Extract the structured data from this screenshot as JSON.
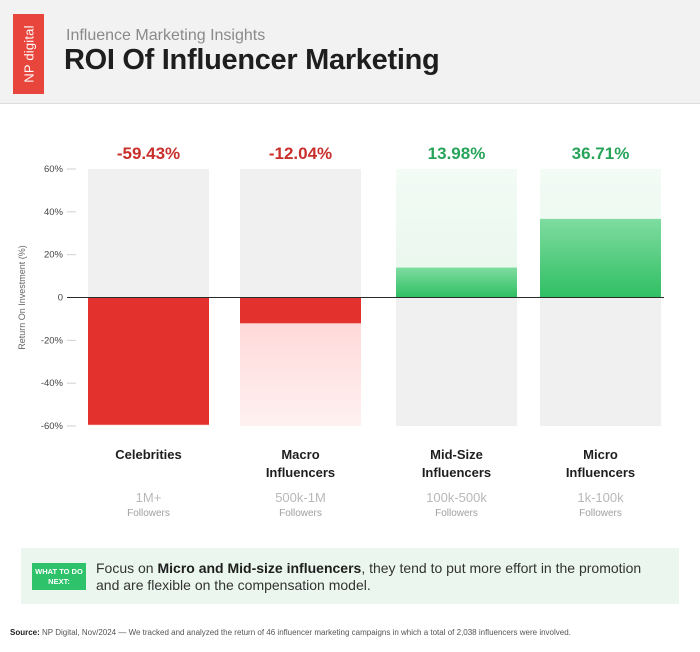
{
  "header": {
    "logo_text": "NP digital",
    "kicker": "Influence Marketing Insights",
    "title": "ROI Of Influencer Marketing"
  },
  "chart_data": {
    "type": "bar",
    "categories": [
      {
        "line1": "Celebrities",
        "line2": "",
        "tier": "1M+",
        "unit": "Followers"
      },
      {
        "line1": "Macro",
        "line2": "Influencers",
        "tier": "500k-1M",
        "unit": "Followers"
      },
      {
        "line1": "Mid-Size",
        "line2": "Influencers",
        "tier": "100k-500k",
        "unit": "Followers"
      },
      {
        "line1": "Micro",
        "line2": "Influencers",
        "tier": "1k-100k",
        "unit": "Followers"
      }
    ],
    "values": [
      -59.43,
      -12.04,
      13.98,
      36.71
    ],
    "value_labels": [
      "-59.43%",
      "-12.04%",
      "13.98%",
      "36.71%"
    ],
    "ylabel": "Return On Investment (%)",
    "yticks": [
      "60%",
      "40%",
      "20%",
      "0",
      "-20%",
      "-40%",
      "-60%"
    ],
    "tick_values": [
      60,
      40,
      20,
      0,
      -20,
      -40,
      -60
    ],
    "ylim": [
      -60,
      60
    ],
    "colors": {
      "negative": "#e3322e",
      "negative_light": "#ffd3d3",
      "positive": "#2fbf63",
      "positive_light": "#e8f7ec",
      "track": "#f0f0f0",
      "negative_label": "#c9302c",
      "positive_label": "#28a45a"
    }
  },
  "callout": {
    "tag": "WHAT TO DO NEXT:",
    "text_before": "Focus on ",
    "text_bold": "Micro and Mid-size influencers",
    "text_after": ", they tend to put more effort in the promotion and are flexible on the compensation model."
  },
  "source": {
    "label": "Source:",
    "text": " NP Digital, Nov/2024 — We tracked and analyzed the return of 46 influencer marketing campaigns in which a total of 2,038 influencers were involved."
  }
}
